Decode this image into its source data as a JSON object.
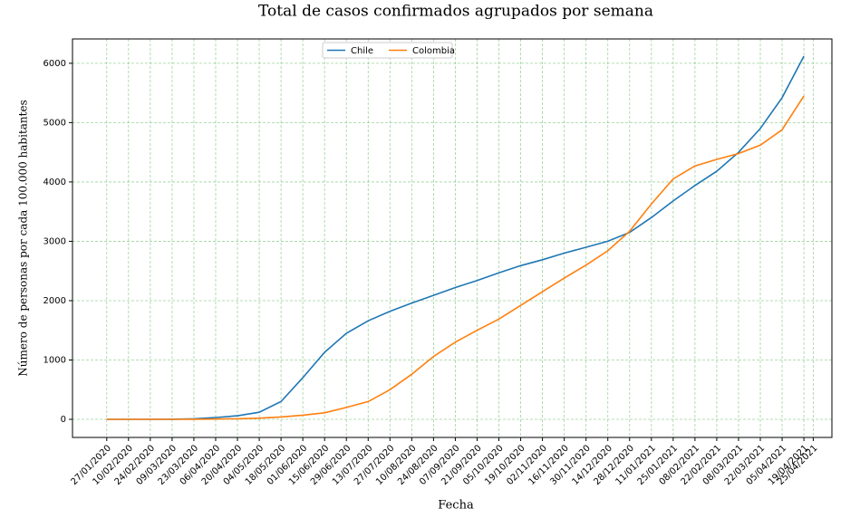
{
  "chart_data": {
    "type": "line",
    "title": "Total de casos confirmados agrupados por semana",
    "xlabel": "Fecha",
    "ylabel": "Número de personas por cada 100.000 habitantes",
    "x": [
      "27/01/2020",
      "10/02/2020",
      "24/02/2020",
      "09/03/2020",
      "23/03/2020",
      "06/04/2020",
      "20/04/2020",
      "04/05/2020",
      "18/05/2020",
      "01/06/2020",
      "15/06/2020",
      "29/06/2020",
      "13/07/2020",
      "27/07/2020",
      "10/08/2020",
      "24/08/2020",
      "07/09/2020",
      "21/09/2020",
      "05/10/2020",
      "19/10/2020",
      "02/11/2020",
      "16/11/2020",
      "30/11/2020",
      "14/12/2020",
      "28/12/2020",
      "11/01/2021",
      "25/01/2021",
      "08/02/2021",
      "22/02/2021",
      "08/03/2021",
      "22/03/2021",
      "05/04/2021",
      "19/04/2021"
    ],
    "series": [
      {
        "name": "Chile",
        "color": "#1f77b4",
        "values": [
          0,
          0,
          0,
          1,
          10,
          30,
          60,
          120,
          300,
          700,
          1130,
          1450,
          1660,
          1820,
          1960,
          2090,
          2220,
          2340,
          2470,
          2590,
          2690,
          2800,
          2900,
          3000,
          3150,
          3400,
          3680,
          3940,
          4180,
          4500,
          4900,
          5420,
          6120
        ]
      },
      {
        "name": "Colombia",
        "color": "#ff7f0e",
        "values": [
          0,
          0,
          0,
          0,
          2,
          5,
          10,
          20,
          40,
          70,
          110,
          200,
          300,
          500,
          760,
          1060,
          1300,
          1500,
          1690,
          1920,
          2150,
          2380,
          2600,
          2840,
          3170,
          3630,
          4050,
          4270,
          4380,
          4480,
          4620,
          4880,
          5450
        ]
      }
    ],
    "xlim": [
      "05/01/2020",
      "07/05/2021"
    ],
    "xticks": [
      "27/01/2020",
      "10/02/2020",
      "24/02/2020",
      "09/03/2020",
      "23/03/2020",
      "06/04/2020",
      "20/04/2020",
      "04/05/2020",
      "18/05/2020",
      "01/06/2020",
      "15/06/2020",
      "29/06/2020",
      "13/07/2020",
      "27/07/2020",
      "10/08/2020",
      "24/08/2020",
      "07/09/2020",
      "21/09/2020",
      "05/10/2020",
      "19/10/2020",
      "02/11/2020",
      "16/11/2020",
      "30/11/2020",
      "14/12/2020",
      "28/12/2020",
      "11/01/2021",
      "25/01/2021",
      "08/02/2021",
      "22/02/2021",
      "08/03/2021",
      "22/03/2021",
      "05/04/2021",
      "19/04/2021",
      "25/04/2021"
    ],
    "ylim": [
      -305,
      6410
    ],
    "yticks": [
      0,
      1000,
      2000,
      3000,
      4000,
      5000,
      6000
    ],
    "grid": true,
    "legend": "upper center"
  }
}
